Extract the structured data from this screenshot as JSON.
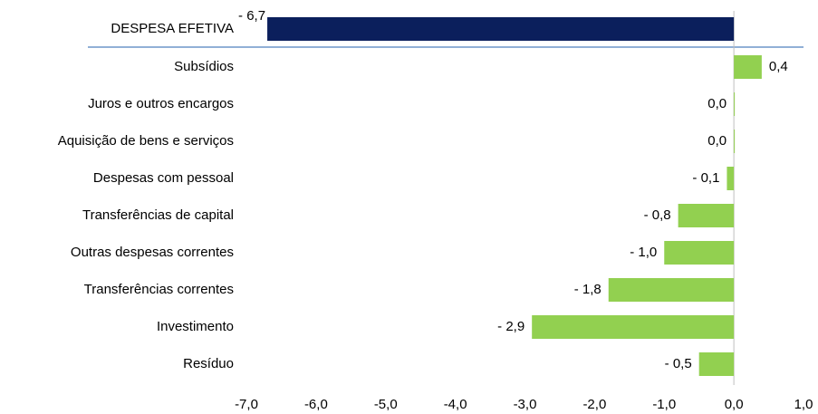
{
  "chart_data": {
    "type": "bar",
    "orientation": "horizontal",
    "categories": [
      "DESPESA EFETIVA",
      "Subsídios",
      "Juros e outros encargos",
      "Aquisição de bens e serviços",
      "Despesas com pessoal",
      "Transferências de capital",
      "Outras despesas correntes",
      "Transferências correntes",
      "Investimento",
      "Resíduo"
    ],
    "values": [
      -6.7,
      0.4,
      0.0,
      0.0,
      -0.1,
      -0.8,
      -1.0,
      -1.8,
      -2.9,
      -0.5
    ],
    "value_labels": [
      "- 6,7",
      "0,4",
      "0,0",
      "0,0",
      "- 0,1",
      "- 0,8",
      "- 1,0",
      "- 1,8",
      "- 2,9",
      "- 0,5"
    ],
    "colors": [
      "#0b1f5c",
      "#92d050",
      "#92d050",
      "#92d050",
      "#92d050",
      "#92d050",
      "#92d050",
      "#92d050",
      "#92d050",
      "#92d050"
    ],
    "xlim": [
      -7,
      1
    ],
    "xticks": [
      {
        "value": -7,
        "label": "-7,0"
      },
      {
        "value": -6,
        "label": "-6,0"
      },
      {
        "value": -5,
        "label": "-5,0"
      },
      {
        "value": -4,
        "label": "-4,0"
      },
      {
        "value": -3,
        "label": "-3,0"
      },
      {
        "value": -2,
        "label": "-2,0"
      },
      {
        "value": -1,
        "label": "-1,0"
      },
      {
        "value": 0,
        "label": "0,0"
      },
      {
        "value": 1,
        "label": "1,0"
      }
    ]
  }
}
